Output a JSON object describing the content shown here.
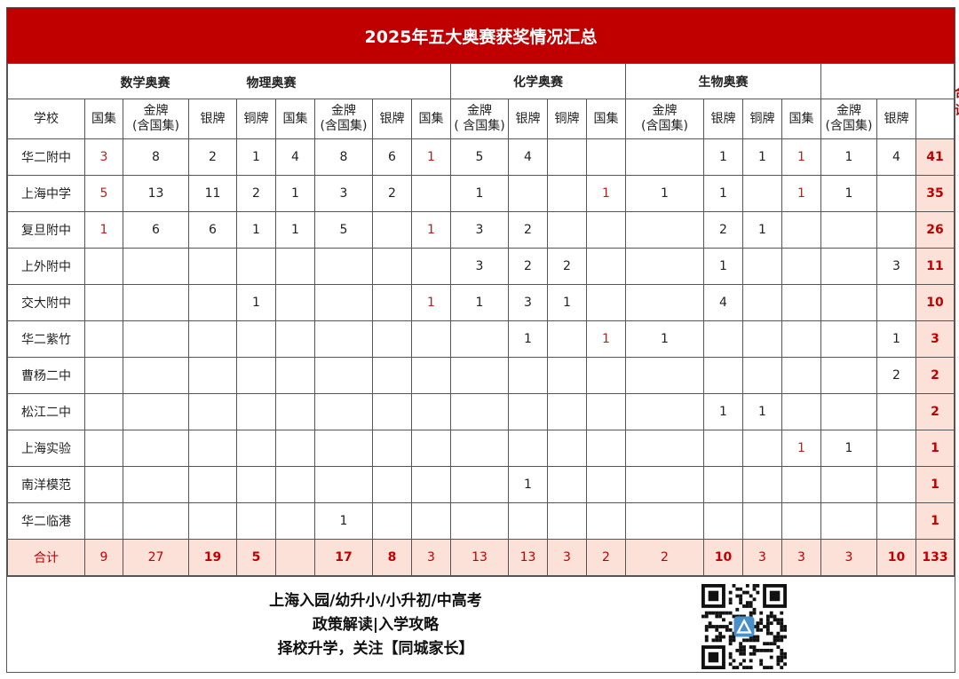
{
  "title": "2025年五大奥赛获奖情况汇总",
  "groups": [
    "数学奥赛",
    "物理奥赛",
    "化学奥赛",
    "生物奥赛",
    ""
  ],
  "total_header": "合计",
  "school_header": "学校",
  "sub_headers": [
    "国集",
    "金牌\n(含国集)",
    "银牌",
    "铜牌",
    "国集",
    "金牌\n(含国集)",
    "银牌",
    "国集",
    "金牌\n( 含国集)",
    "银牌",
    "铜牌",
    "国集",
    "金牌\n(含国集)",
    "银牌",
    "铜牌",
    "国集",
    "金牌\n(含国集)",
    "银牌"
  ],
  "rows": [
    {
      "school": "华二附中",
      "v": [
        "3",
        "8",
        "2",
        "1",
        "4",
        "8",
        "6",
        "1",
        "5",
        "4",
        "",
        "",
        "",
        "1",
        "1",
        "1",
        "1",
        "4"
      ],
      "total": "41"
    },
    {
      "school": "上海中学",
      "v": [
        "5",
        "13",
        "11",
        "2",
        "1",
        "3",
        "2",
        "",
        "1",
        "",
        "",
        "1",
        "1",
        "1",
        "",
        "1",
        "1",
        ""
      ],
      "total": "35"
    },
    {
      "school": "复旦附中",
      "v": [
        "1",
        "6",
        "6",
        "1",
        "1",
        "5",
        "",
        "1",
        "3",
        "2",
        "",
        "",
        "",
        "2",
        "1",
        "",
        "",
        ""
      ],
      "total": "26"
    },
    {
      "school": "上外附中",
      "v": [
        "",
        "",
        "",
        "",
        "",
        "",
        "",
        "",
        "3",
        "2",
        "2",
        "",
        "",
        "1",
        "",
        "",
        "",
        "3"
      ],
      "total": "11"
    },
    {
      "school": "交大附中",
      "v": [
        "",
        "",
        "",
        "1",
        "",
        "",
        "",
        "1",
        "1",
        "3",
        "1",
        "",
        "",
        "4",
        "",
        "",
        "",
        ""
      ],
      "total": "10"
    },
    {
      "school": "华二紫竹",
      "v": [
        "",
        "",
        "",
        "",
        "",
        "",
        "",
        "",
        "",
        "1",
        "",
        "1",
        "1",
        "",
        "",
        "",
        "",
        "1"
      ],
      "total": "3"
    },
    {
      "school": "曹杨二中",
      "v": [
        "",
        "",
        "",
        "",
        "",
        "",
        "",
        "",
        "",
        "",
        "",
        "",
        "",
        "",
        "",
        "",
        "",
        "2"
      ],
      "total": "2"
    },
    {
      "school": "松江二中",
      "v": [
        "",
        "",
        "",
        "",
        "",
        "",
        "",
        "",
        "",
        "",
        "",
        "",
        "",
        "1",
        "1",
        "",
        "",
        ""
      ],
      "total": "2"
    },
    {
      "school": "上海实验",
      "v": [
        "",
        "",
        "",
        "",
        "",
        "",
        "",
        "",
        "",
        "",
        "",
        "",
        "",
        "",
        "",
        "1",
        "1",
        ""
      ],
      "total": "1"
    },
    {
      "school": "南洋模范",
      "v": [
        "",
        "",
        "",
        "",
        "",
        "",
        "",
        "",
        "",
        "1",
        "",
        "",
        "",
        "",
        "",
        "",
        "",
        ""
      ],
      "total": "1"
    },
    {
      "school": "华二临港",
      "v": [
        "",
        "",
        "",
        "",
        "",
        "1",
        "",
        "",
        "",
        "",
        "",
        "",
        "",
        "",
        "",
        "",
        "",
        ""
      ],
      "total": "1"
    }
  ],
  "totals": {
    "label": "合计",
    "v": [
      "9",
      "27",
      "19",
      "5",
      "",
      "17",
      "8",
      "3",
      "13",
      "13",
      "3",
      "2",
      "2",
      "10",
      "3",
      "3",
      "3",
      "10"
    ],
    "total": "133"
  },
  "footer": {
    "lines": [
      "上海入园/幼升小/小升初/中高考",
      "政策解读|入学攻略",
      "择校升学，关注【同城家长】"
    ],
    "qr_icon": "qr-code-icon"
  },
  "colors": {
    "title_bg": "#c00000",
    "total_bg": "#fbe1d8",
    "accent_red": "#c00000"
  }
}
